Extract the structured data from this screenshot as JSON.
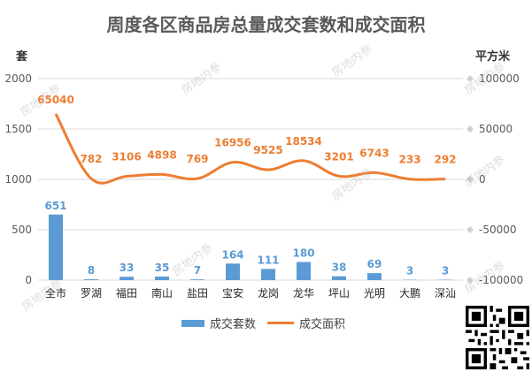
{
  "title": "周度各区商品房总量成交套数和成交面积",
  "units": {
    "left": "套",
    "right": "平方米"
  },
  "watermark": "房地内参",
  "legend": {
    "bar": "成交套数",
    "line": "成交面积"
  },
  "colors": {
    "bar": "#5b9bd5",
    "line": "#ed7d31",
    "grid": "#d9d9d9",
    "text": "#595959"
  },
  "chart_data": {
    "type": "bar+line",
    "title": "周度各区商品房总量成交套数和成交面积",
    "categories": [
      "全市",
      "罗湖",
      "福田",
      "南山",
      "盐田",
      "宝安",
      "龙岗",
      "龙华",
      "坪山",
      "光明",
      "大鹏",
      "深汕"
    ],
    "series": [
      {
        "name": "成交套数",
        "type": "bar",
        "axis": "left",
        "values": [
          651,
          8,
          33,
          35,
          7,
          164,
          111,
          180,
          38,
          69,
          3,
          3
        ]
      },
      {
        "name": "成交面积",
        "type": "line",
        "axis": "right",
        "values": [
          65040,
          782,
          3106,
          4898,
          769,
          16956,
          9525,
          18534,
          3201,
          6743,
          233,
          292
        ]
      }
    ],
    "ylabel": "套",
    "ylim": [
      0,
      2000
    ],
    "yticks": [
      0,
      500,
      1000,
      1500,
      2000
    ],
    "y2label": "平方米",
    "y2lim": [
      -100000,
      100000
    ],
    "y2ticks": [
      "-100000",
      "-50000",
      "0",
      "50000",
      "100000"
    ],
    "legend_position": "bottom",
    "grid": true
  }
}
